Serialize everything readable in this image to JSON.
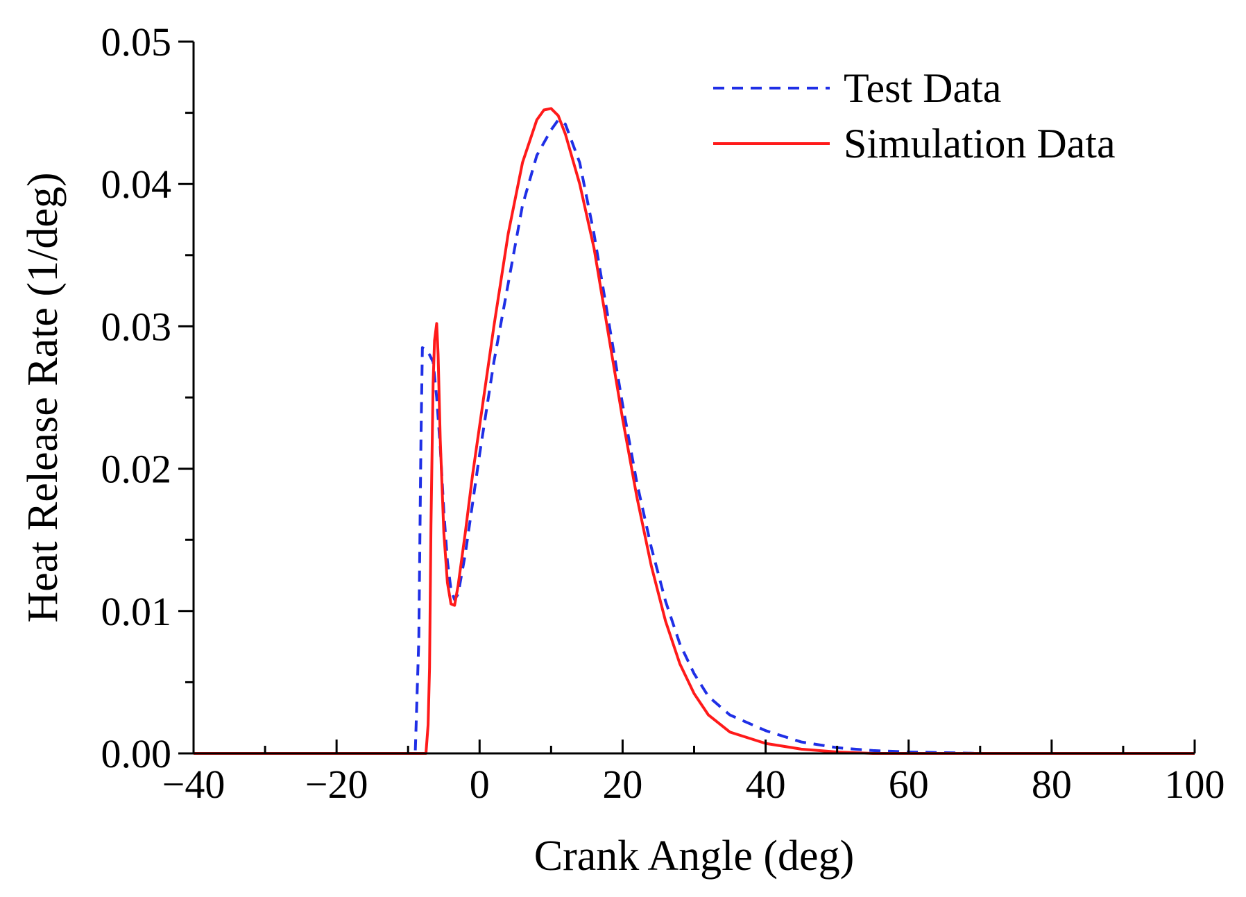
{
  "chart_data": {
    "type": "line",
    "title": "",
    "xlabel": "Crank Angle (deg)",
    "ylabel": "Heat Release Rate (1/deg)",
    "xlim": [
      -40,
      100
    ],
    "ylim": [
      0,
      0.05
    ],
    "xticks": [
      -40,
      -20,
      0,
      20,
      40,
      60,
      80,
      100
    ],
    "xtick_labels": [
      "−40",
      "−20",
      "0",
      "20",
      "40",
      "60",
      "80",
      "100"
    ],
    "yticks": [
      0,
      0.01,
      0.02,
      0.03,
      0.04,
      0.05
    ],
    "ytick_labels": [
      "0.00",
      "0.01",
      "0.02",
      "0.03",
      "0.04",
      "0.05"
    ],
    "x_minor_step": 10,
    "y_minor_step": 0.005,
    "grid": false,
    "legend_position": "top-right",
    "series": [
      {
        "name": "Test Data",
        "color": "#1f2fe6",
        "style": "dashed",
        "x": [
          -40,
          -9,
          -8.5,
          -8.2,
          -8.0,
          -7.5,
          -7.0,
          -6.5,
          -6.0,
          -5.5,
          -5.0,
          -4.5,
          -4.0,
          -3.5,
          -3.0,
          -2.0,
          -1.0,
          0,
          2,
          4,
          6,
          8,
          10,
          11,
          12,
          14,
          16,
          18,
          20,
          22,
          24,
          26,
          28,
          30,
          32,
          35,
          40,
          45,
          50,
          55,
          60,
          70,
          80,
          100
        ],
        "y": [
          0,
          0,
          0.008,
          0.022,
          0.0285,
          0.0284,
          0.028,
          0.0275,
          0.025,
          0.0215,
          0.017,
          0.0135,
          0.0115,
          0.0108,
          0.0112,
          0.014,
          0.0175,
          0.021,
          0.0275,
          0.033,
          0.0385,
          0.042,
          0.0438,
          0.0445,
          0.0442,
          0.0415,
          0.0365,
          0.0305,
          0.0245,
          0.019,
          0.0145,
          0.0107,
          0.0077,
          0.0056,
          0.004,
          0.0027,
          0.0016,
          0.0008,
          0.0004,
          0.0002,
          0.0001,
          0,
          0,
          0
        ]
      },
      {
        "name": "Simulation Data",
        "color": "#ff1a1a",
        "style": "solid",
        "x": [
          -40,
          -7.5,
          -7.2,
          -7.0,
          -6.8,
          -6.5,
          -6.3,
          -6.0,
          -5.8,
          -5.5,
          -5.0,
          -4.5,
          -4.0,
          -3.5,
          -3.0,
          -2.0,
          -1.0,
          0,
          2,
          4,
          6,
          8,
          9,
          10,
          11,
          12,
          14,
          16,
          18,
          20,
          22,
          24,
          26,
          28,
          30,
          32,
          35,
          40,
          45,
          50,
          55,
          60,
          70,
          80,
          100
        ],
        "y": [
          0,
          0,
          0.002,
          0.006,
          0.016,
          0.026,
          0.029,
          0.0302,
          0.028,
          0.022,
          0.0155,
          0.012,
          0.0105,
          0.0104,
          0.0118,
          0.0155,
          0.0195,
          0.023,
          0.03,
          0.0365,
          0.0415,
          0.0445,
          0.0452,
          0.0453,
          0.0448,
          0.0435,
          0.04,
          0.0355,
          0.0295,
          0.0235,
          0.018,
          0.0132,
          0.0093,
          0.0063,
          0.0042,
          0.0027,
          0.0015,
          0.0007,
          0.0003,
          0.0001,
          0,
          0,
          0,
          0,
          0
        ]
      }
    ]
  }
}
